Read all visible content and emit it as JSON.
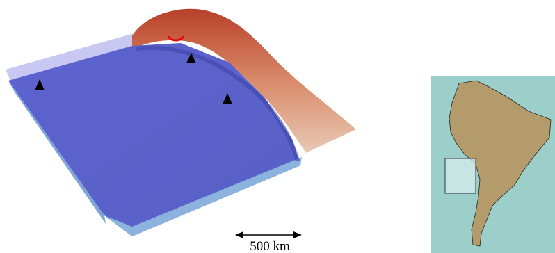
{
  "scale_bar": {
    "label": "500 km"
  }
}
